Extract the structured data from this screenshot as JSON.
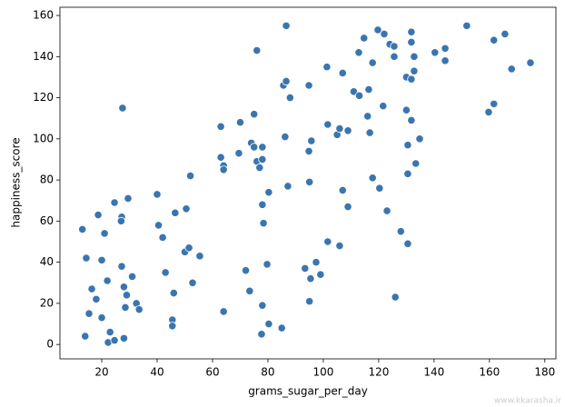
{
  "chart_data": {
    "type": "scatter",
    "x_label": "grams_sugar_per_day",
    "y_label": "happiness_score",
    "color": "#3b75af",
    "xlim": [
      4.9,
      184
    ],
    "ylim": [
      -7,
      164
    ],
    "xticks": [
      20,
      40,
      60,
      80,
      100,
      120,
      140,
      160,
      180
    ],
    "yticks": [
      0,
      20,
      40,
      60,
      80,
      100,
      120,
      140,
      160
    ],
    "x": [
      13,
      14.4,
      14,
      15.4,
      16.4,
      18,
      18.7,
      20,
      20,
      21,
      22,
      22.3,
      23,
      24.6,
      24.6,
      27.2,
      27.2,
      27,
      27.5,
      28,
      28,
      28.5,
      29,
      29.5,
      31,
      32.5,
      33.5,
      40,
      40.5,
      42,
      43,
      45.5,
      45.5,
      46,
      46.5,
      50,
      50.5,
      51.5,
      52,
      52.8,
      55.4,
      63,
      63,
      64,
      64,
      64,
      70,
      69.5,
      72,
      73.4,
      74,
      75,
      75,
      76,
      76,
      77,
      78,
      78,
      77.7,
      78,
      78,
      78.4,
      79.7,
      80.3,
      80.3,
      85,
      85.6,
      86.6,
      86.6,
      86.2,
      87.2,
      88,
      93.4,
      94.8,
      94.8,
      95,
      95,
      95.7,
      95.4,
      97.4,
      99,
      101.3,
      101.6,
      101.6,
      105,
      105.9,
      105.9,
      107,
      107,
      108.9,
      108.9,
      111,
      112.8,
      113,
      114.7,
      116,
      116.4,
      116.8,
      117.8,
      117.8,
      119.7,
      120.3,
      122,
      121.6,
      123,
      124,
      125.6,
      125.6,
      126,
      128,
      130,
      130,
      130.5,
      130.5,
      130.5,
      131.8,
      131.8,
      131.8,
      131.8,
      132.8,
      132.8,
      133.4,
      134.8,
      140.3,
      144,
      144,
      151.8,
      159.7,
      161.6,
      161.6,
      165.6,
      168,
      174.8
    ],
    "y": [
      56,
      42,
      4,
      15,
      27,
      22,
      63,
      41,
      13,
      54,
      31,
      1,
      6,
      2,
      69,
      38,
      62,
      60,
      115,
      3,
      28,
      18,
      24,
      71,
      33,
      20,
      17,
      73,
      58,
      52,
      35,
      12,
      9,
      25,
      64,
      45,
      66,
      47,
      82,
      30,
      43,
      91,
      106,
      87,
      85,
      16,
      108,
      93,
      36,
      26,
      98,
      96,
      112,
      143,
      89,
      86,
      90,
      96,
      5,
      19,
      68,
      59,
      39,
      10,
      74,
      8,
      126,
      128,
      155,
      101,
      77,
      120,
      37,
      126,
      94,
      79,
      21,
      99,
      32,
      40,
      34,
      135,
      107,
      50,
      102,
      105,
      48,
      132,
      75,
      67,
      104,
      123,
      142,
      121,
      149,
      111,
      124,
      103,
      137,
      81,
      153,
      76,
      151,
      116,
      65,
      146,
      145,
      140,
      23,
      55,
      114,
      130,
      97,
      83,
      49,
      129,
      152,
      147,
      109,
      133,
      140,
      88,
      100,
      142,
      144,
      138,
      155,
      113,
      117,
      148,
      151,
      134,
      137
    ]
  },
  "watermark": "www.kkarasha.ir"
}
